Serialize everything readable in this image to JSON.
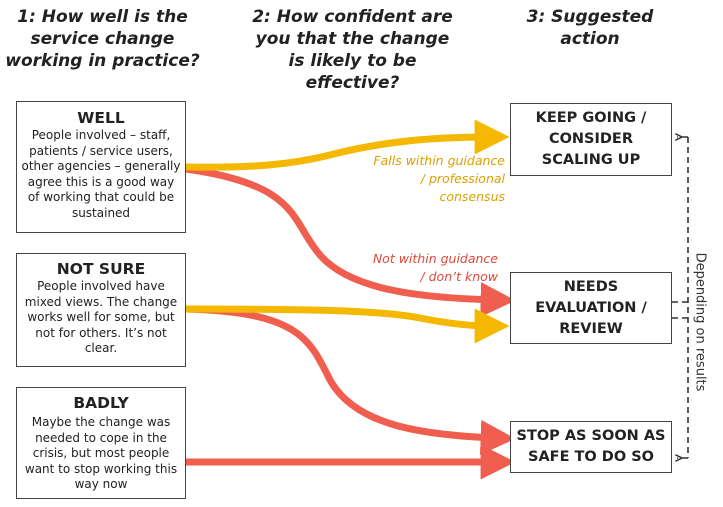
{
  "headers": {
    "col1": "1: How well is the\nservice change\nworking in practice?",
    "col2": "2: How confident are\nyou that the change\nis likely to be\neffective?",
    "col3": "3: Suggested\naction"
  },
  "situations": [
    {
      "title": "WELL",
      "description": "People involved – staff, patients / service users, other agencies – generally agree this is a good way of working that could be sustained"
    },
    {
      "title": "NOT SURE",
      "description": "People involved have mixed views. The change works well for some, but not for others. It’s not clear."
    },
    {
      "title": "BADLY",
      "description": "Maybe the change was needed to cope in the crisis, but most people want to stop working this way now"
    }
  ],
  "actions": [
    {
      "label": "KEEP GOING /\nCONSIDER\nSCALING UP"
    },
    {
      "label": "NEEDS\nEVALUATION /\nREVIEW"
    },
    {
      "label": "STOP AS SOON AS\nSAFE TO DO SO"
    }
  ],
  "confidence_labels": {
    "within": "Falls within guidance\n/ professional\nconsensus",
    "not_within": "Not within guidance\n/  don’t know"
  },
  "side_note": "Depending on results",
  "colors": {
    "within_guidance": "#f5b800",
    "not_within_guidance": "#ef5e4e",
    "border": "#444444"
  }
}
